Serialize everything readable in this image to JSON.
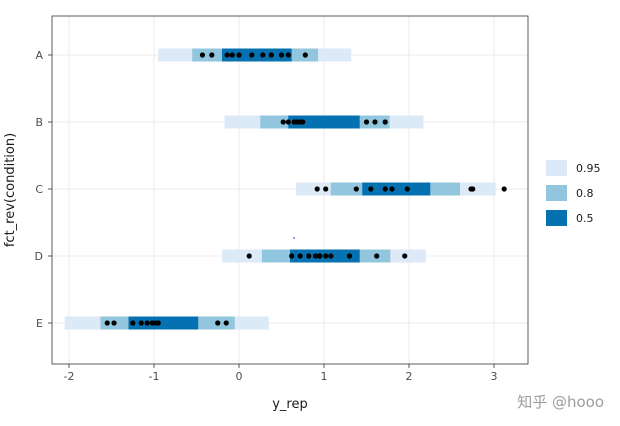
{
  "watermark": {
    "text": "知乎 @hooo"
  },
  "chart_data": {
    "type": "interval",
    "xlabel": "y_rep",
    "ylabel": "fct_rev(condition)",
    "xlim": [
      -2.2,
      3.4
    ],
    "x_ticks": [
      -2,
      -1,
      0,
      1,
      2,
      3
    ],
    "x_tick_labels": [
      "-2",
      "-1",
      "0",
      "1",
      "2",
      "3"
    ],
    "grid": true,
    "legend": {
      "placement": "right",
      "entries": [
        {
          "label": "0.95",
          "color": "#dce9f6"
        },
        {
          "label": "0.8",
          "color": "#92c5de"
        },
        {
          "label": "0.5",
          "color": "#0571b0"
        }
      ]
    },
    "categories": [
      "A",
      "B",
      "C",
      "D",
      "E"
    ],
    "intervals": [
      {
        "category": "A",
        "i95": [
          -0.95,
          1.32
        ],
        "i80": [
          -0.55,
          0.93
        ],
        "i50": [
          -0.2,
          0.62
        ],
        "points": [
          -0.43,
          -0.32,
          -0.14,
          -0.08,
          0.0,
          0.15,
          0.28,
          0.38,
          0.5,
          0.58,
          0.78
        ]
      },
      {
        "category": "B",
        "i95": [
          -0.17,
          2.17
        ],
        "i80": [
          0.25,
          1.77
        ],
        "i50": [
          0.58,
          1.42
        ],
        "points": [
          0.52,
          0.58,
          0.65,
          0.68,
          0.72,
          0.75,
          1.5,
          1.6,
          1.72
        ]
      },
      {
        "category": "C",
        "i95": [
          0.67,
          3.02
        ],
        "i80": [
          1.08,
          2.6
        ],
        "i50": [
          1.45,
          2.25
        ],
        "points": [
          0.92,
          1.02,
          1.38,
          1.55,
          1.72,
          1.8,
          1.98,
          2.73,
          2.75,
          3.12
        ]
      },
      {
        "category": "D",
        "i95": [
          -0.2,
          2.2
        ],
        "i80": [
          0.27,
          1.78
        ],
        "i50": [
          0.6,
          1.42
        ],
        "points": [
          0.12,
          0.62,
          0.72,
          0.82,
          0.9,
          0.95,
          1.02,
          1.08,
          1.3,
          1.62,
          1.95
        ]
      },
      {
        "category": "E",
        "i95": [
          -2.05,
          0.35
        ],
        "i80": [
          -1.63,
          -0.05
        ],
        "i50": [
          -1.3,
          -0.48
        ],
        "points": [
          -1.55,
          -1.47,
          -1.25,
          -1.15,
          -1.08,
          -1.02,
          -0.98,
          -0.95,
          -0.25,
          -0.15
        ]
      }
    ]
  }
}
